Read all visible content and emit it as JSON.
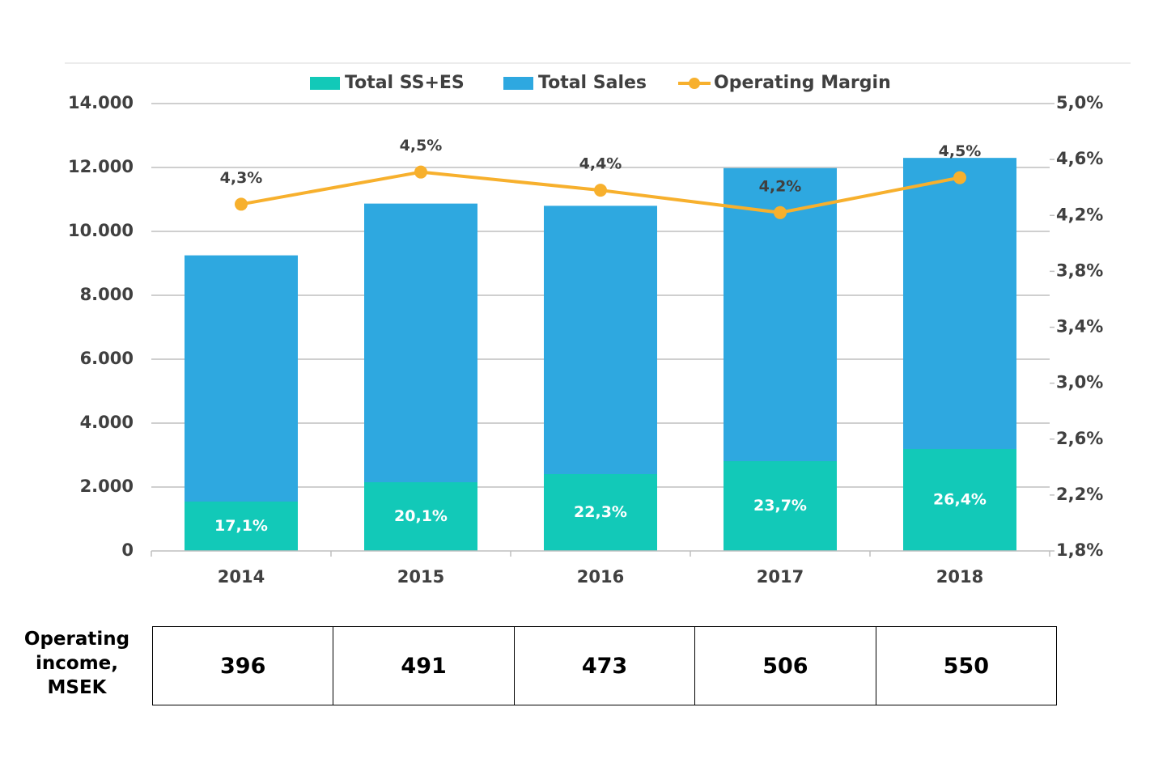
{
  "chart_data": {
    "type": "bar",
    "categories": [
      "2014",
      "2015",
      "2016",
      "2017",
      "2018"
    ],
    "series": [
      {
        "name": "Total SS+ES",
        "color": "#12c9b8",
        "values": [
          1545,
          2150,
          2405,
          2810,
          3190
        ]
      },
      {
        "name": "Total Sales",
        "color": "#2ea8e0",
        "values": [
          9250,
          10870,
          10800,
          11980,
          12300
        ]
      },
      {
        "name": "Operating Margin",
        "color": "#f7b02d",
        "type": "line",
        "axis": "y2",
        "values": [
          4.28,
          4.51,
          4.38,
          4.22,
          4.47
        ],
        "value_labels": [
          "4,3%",
          "4,5%",
          "4,4%",
          "4,2%",
          "4,5%"
        ]
      }
    ],
    "bar_annotations": [
      "17,1%",
      "20,1%",
      "22,3%",
      "23,7%",
      "26,4%"
    ],
    "ylim": [
      0,
      14000
    ],
    "yticks": [
      0,
      {
        "value": 2000,
        "label": "2.000"
      },
      {
        "value": 4000,
        "label": "4.000"
      },
      {
        "value": 6000,
        "label": "6.000"
      },
      {
        "value": 8000,
        "label": "8.000"
      },
      {
        "value": 10000,
        "label": "10.000"
      },
      {
        "value": 12000,
        "label": "12.000"
      },
      {
        "value": 14000,
        "label": "14.000"
      }
    ],
    "y2lim": [
      1.8,
      5.0
    ],
    "y2ticks": [
      {
        "value": 1.8,
        "label": "1,8%"
      },
      {
        "value": 2.2,
        "label": "2,2%"
      },
      {
        "value": 2.6,
        "label": "2,6%"
      },
      {
        "value": 3.0,
        "label": "3,0%"
      },
      {
        "value": 3.4,
        "label": "3,4%"
      },
      {
        "value": 3.8,
        "label": "3,8%"
      },
      {
        "value": 4.2,
        "label": "4,2%"
      },
      {
        "value": 4.6,
        "label": "4,6%"
      },
      {
        "value": 5.0,
        "label": "5,0%"
      }
    ],
    "grid": true,
    "legend": "top",
    "table": {
      "header": "Operating income, MSEK",
      "values": [
        396,
        491,
        473,
        506,
        550
      ]
    }
  }
}
